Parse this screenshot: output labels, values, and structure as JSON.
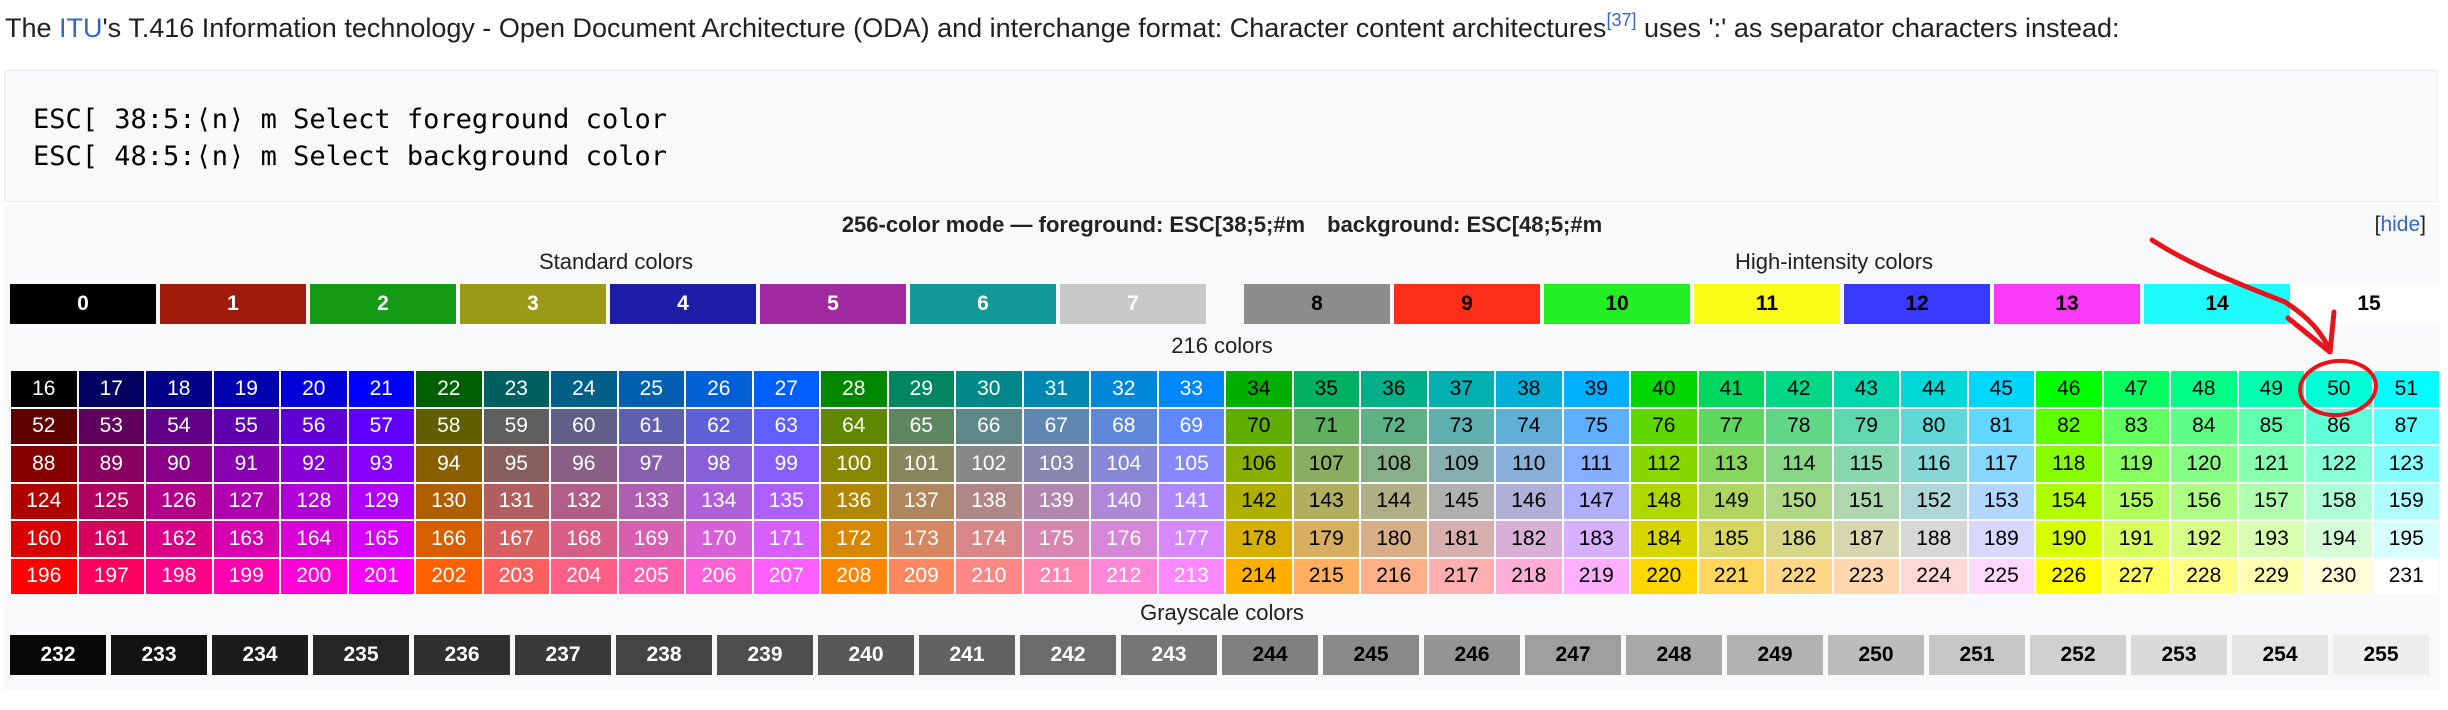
{
  "intro": {
    "prefix": "The ",
    "link": "ITU",
    "middle": "'s T.416 Information technology - Open Document Architecture (ODA) and interchange format: Character content architectures",
    "ref": "[37]",
    "suffix": " uses ':' as separator characters instead:"
  },
  "code": {
    "line1": "ESC[ 38:5:⟨n⟩ m Select foreground color",
    "line2": "ESC[ 48:5:⟨n⟩ m Select background color"
  },
  "table": {
    "caption_fg": "256-color mode — foreground: ESC[38;5;#m",
    "caption_bg": "background: ESC[48;5;#m",
    "hide_open": "[",
    "hide_link": "hide",
    "hide_close": "]",
    "standard_label": "Standard colors",
    "high_label": "High-intensity colors",
    "cube_label": "216 colors",
    "gray_label": "Grayscale colors"
  },
  "standard_colors": [
    {
      "label": "0",
      "bg": "#000000",
      "fg": "#ffffff"
    },
    {
      "label": "1",
      "bg": "#a11b0d",
      "fg": "#ffffff"
    },
    {
      "label": "2",
      "bg": "#149a14",
      "fg": "#ffffff"
    },
    {
      "label": "3",
      "bg": "#9a9a16",
      "fg": "#ffffff"
    },
    {
      "label": "4",
      "bg": "#1d1da8",
      "fg": "#ffffff"
    },
    {
      "label": "5",
      "bg": "#a02ba0",
      "fg": "#ffffff"
    },
    {
      "label": "6",
      "bg": "#11999a",
      "fg": "#ffffff"
    },
    {
      "label": "7",
      "bg": "#c8c8c8",
      "fg": "#ffffff"
    }
  ],
  "high_colors": [
    {
      "label": "8",
      "bg": "#8c8c8c",
      "fg": "#000000"
    },
    {
      "label": "9",
      "bg": "#ff2e1a",
      "fg": "#000000"
    },
    {
      "label": "10",
      "bg": "#22ee22",
      "fg": "#000000"
    },
    {
      "label": "11",
      "bg": "#fbfb18",
      "fg": "#000000"
    },
    {
      "label": "12",
      "bg": "#3a3aff",
      "fg": "#000000"
    },
    {
      "label": "13",
      "bg": "#fc3bf8",
      "fg": "#000000"
    },
    {
      "label": "14",
      "bg": "#1dfbfb",
      "fg": "#000000"
    },
    {
      "label": "15",
      "bg": "#ffffff",
      "fg": "#000000"
    }
  ],
  "cube_start": 16,
  "cube_levels": [
    0,
    95,
    135,
    175,
    215,
    255
  ],
  "grayscale_start": 232,
  "grayscale_count": 24,
  "annotation": {
    "color": "#e8141c",
    "marked_cell": "50"
  }
}
